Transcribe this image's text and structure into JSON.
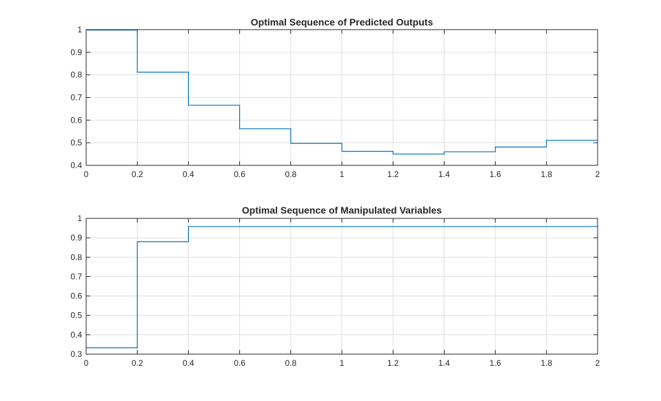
{
  "chart_data": [
    {
      "type": "line",
      "step": true,
      "title": "Optimal Sequence of Predicted Outputs",
      "xlabel": "",
      "ylabel": "",
      "xlim": [
        0,
        2
      ],
      "ylim": [
        0.4,
        1
      ],
      "grid": true,
      "x_ticks": [
        "0",
        "0.2",
        "0.4",
        "0.6",
        "0.8",
        "1",
        "1.2",
        "1.4",
        "1.6",
        "1.8",
        "2"
      ],
      "y_ticks": [
        "0.4",
        "0.5",
        "0.6",
        "0.7",
        "0.8",
        "0.9",
        "1"
      ],
      "series": [
        {
          "color": "#0072bd",
          "x": [
            0,
            0.2,
            0.4,
            0.6,
            0.8,
            1.0,
            1.2,
            1.4,
            1.6,
            1.8,
            2.0
          ],
          "y": [
            0.998,
            0.812,
            0.666,
            0.562,
            0.497,
            0.462,
            0.45,
            0.46,
            0.481,
            0.511,
            0.511
          ]
        }
      ]
    },
    {
      "type": "line",
      "step": true,
      "title": "Optimal Sequence of Manipulated Variables",
      "xlabel": "",
      "ylabel": "",
      "xlim": [
        0,
        2
      ],
      "ylim": [
        0.3,
        1
      ],
      "grid": true,
      "x_ticks": [
        "0",
        "0.2",
        "0.4",
        "0.6",
        "0.8",
        "1",
        "1.2",
        "1.4",
        "1.6",
        "1.8",
        "2"
      ],
      "y_ticks": [
        "0.3",
        "0.4",
        "0.5",
        "0.6",
        "0.7",
        "0.8",
        "0.9",
        "1"
      ],
      "series": [
        {
          "color": "#0072bd",
          "x": [
            0,
            0.2,
            0.4,
            0.6,
            0.8,
            1.0,
            1.2,
            1.4,
            1.6,
            1.8,
            2.0
          ],
          "y": [
            0.333,
            0.88,
            0.958,
            0.958,
            0.958,
            0.958,
            0.958,
            0.958,
            0.958,
            0.958,
            0.958
          ]
        }
      ]
    }
  ]
}
